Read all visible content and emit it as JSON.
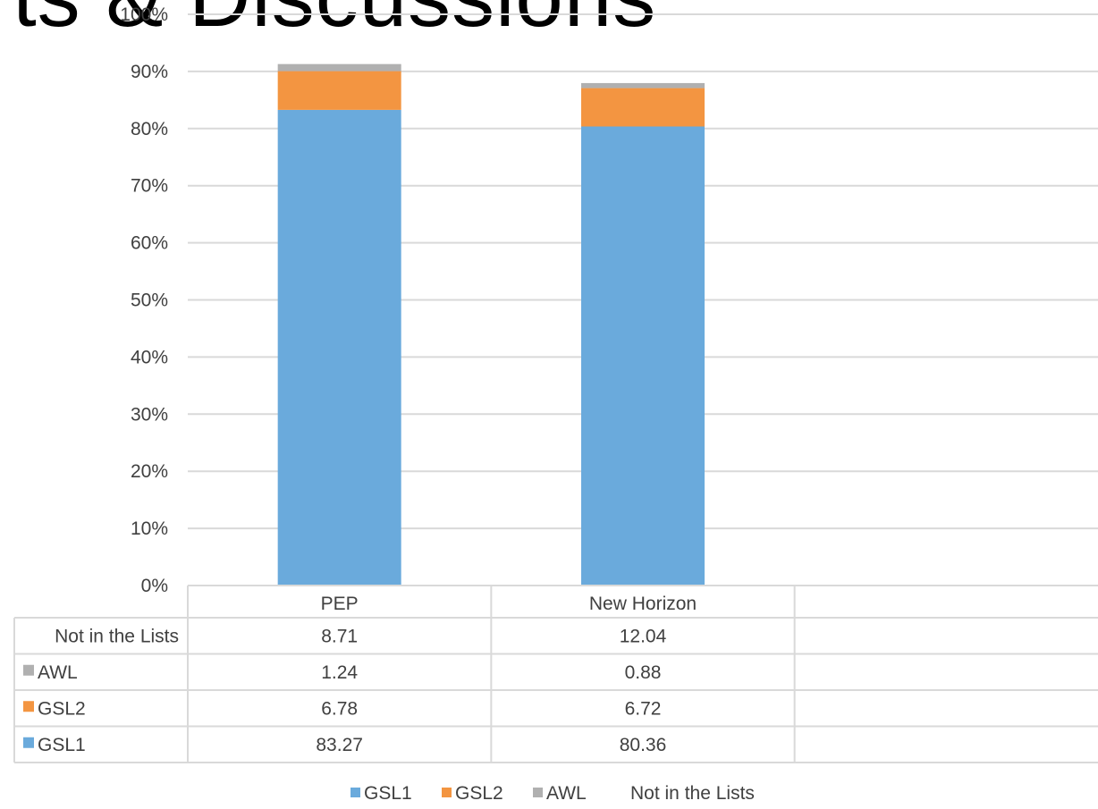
{
  "slide": {
    "title_fragment": "ts & Discussions"
  },
  "chart_data": {
    "type": "bar",
    "stacked": true,
    "percent_axis": true,
    "categories": [
      "PEP",
      "New Horizon"
    ],
    "series": [
      {
        "name": "GSL1",
        "color": "#6aaadc",
        "values": [
          83.27,
          80.36
        ]
      },
      {
        "name": "GSL2",
        "color": "#f39541",
        "values": [
          6.78,
          6.72
        ]
      },
      {
        "name": "AWL",
        "color": "#b0b0b0",
        "values": [
          1.24,
          0.88
        ]
      },
      {
        "name": "Not in the Lists",
        "color": null,
        "values": [
          8.71,
          12.04
        ]
      }
    ],
    "y_ticks": [
      "0%",
      "10%",
      "20%",
      "30%",
      "40%",
      "50%",
      "60%",
      "70%",
      "80%",
      "90%",
      "100%"
    ],
    "ylim": [
      0,
      100
    ],
    "grid": true,
    "data_table": true,
    "legend_position": "bottom"
  }
}
